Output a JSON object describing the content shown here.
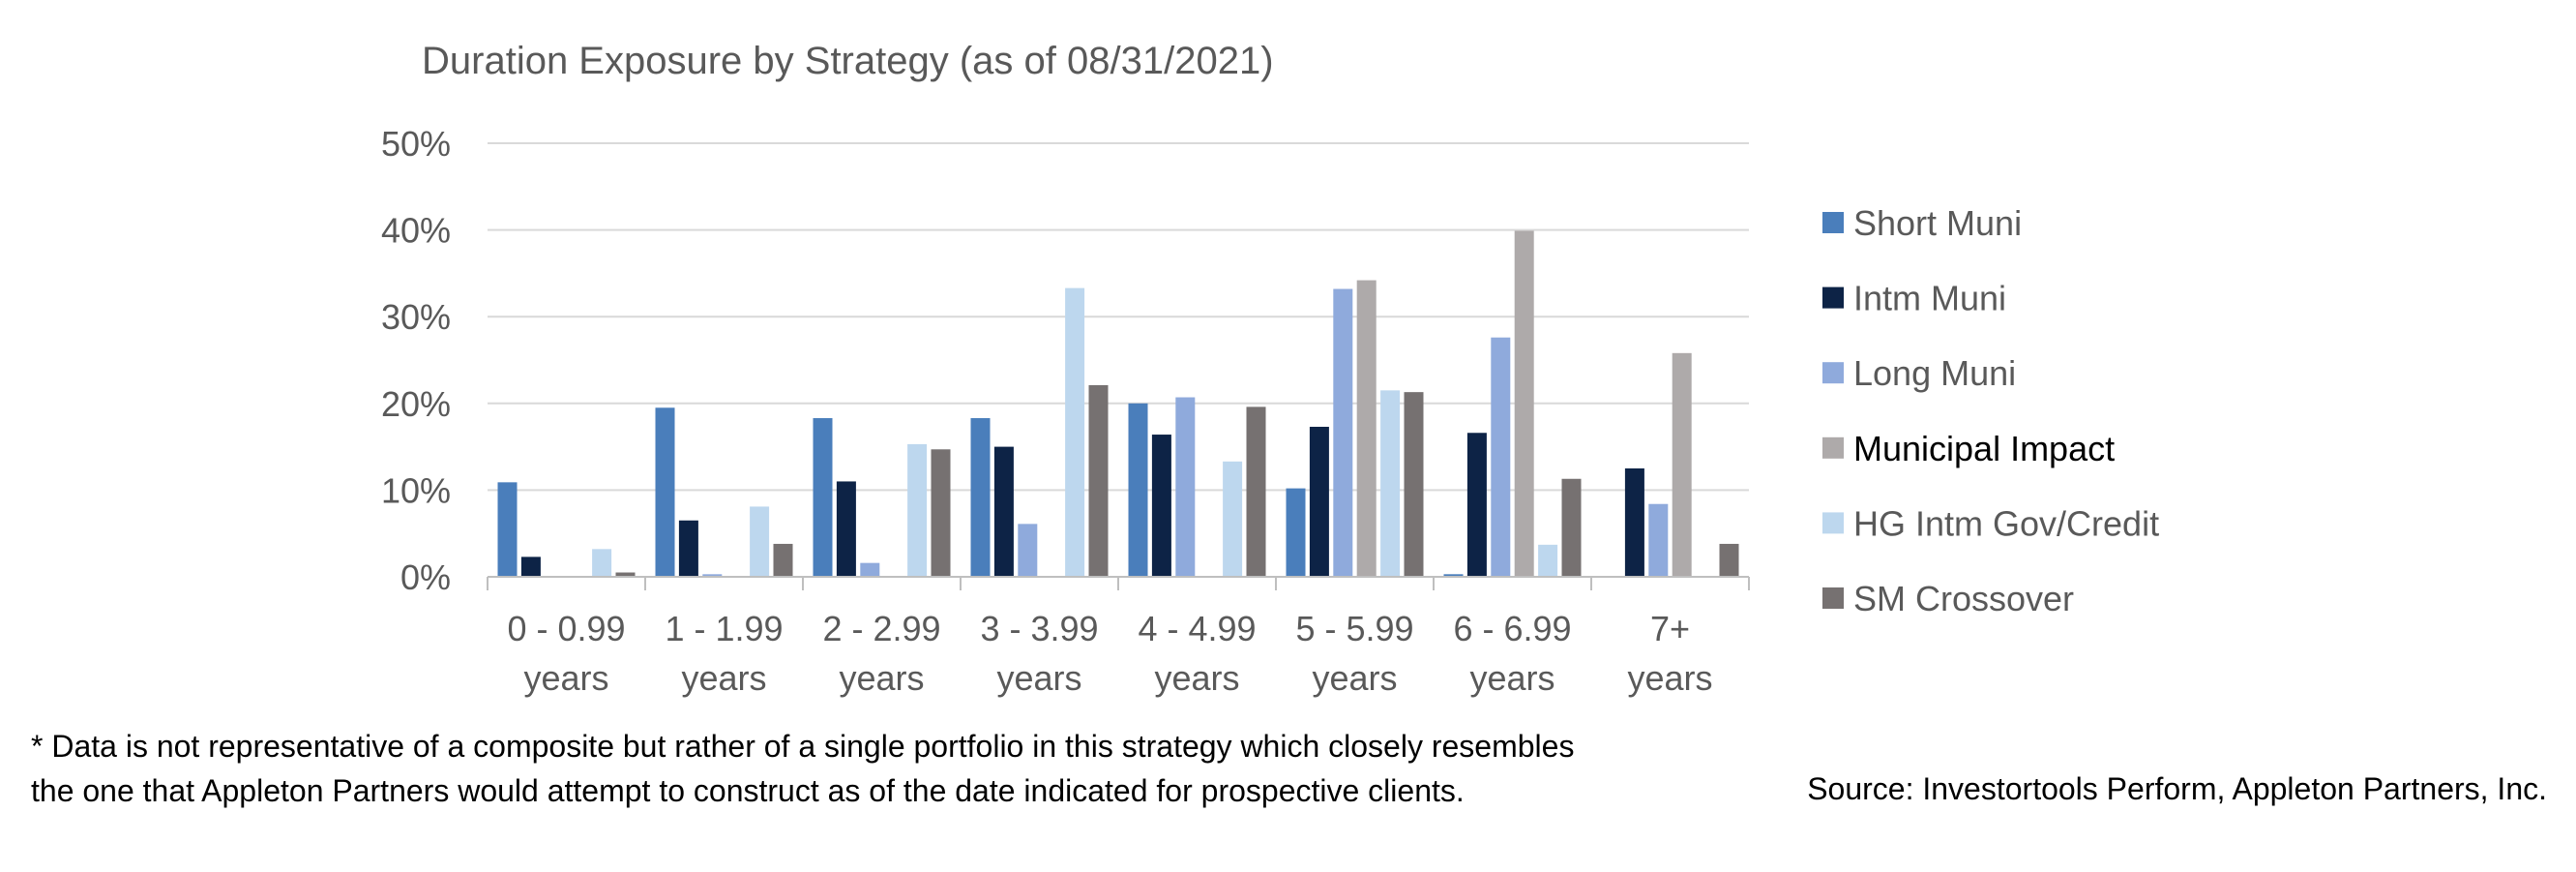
{
  "chart_data": {
    "type": "bar",
    "title": "Duration Exposure by Strategy (as of 08/31/2021)",
    "categories": [
      [
        "0 - 0.99",
        "years"
      ],
      [
        "1 - 1.99",
        "years"
      ],
      [
        "2 - 2.99",
        "years"
      ],
      [
        "3 - 3.99",
        "years"
      ],
      [
        "4 - 4.99",
        "years"
      ],
      [
        "5 - 5.99",
        "years"
      ],
      [
        "6 - 6.99",
        "years"
      ],
      [
        "7+",
        "years"
      ]
    ],
    "ylim": [
      0,
      50
    ],
    "yticks": [
      0,
      10,
      20,
      30,
      40,
      50
    ],
    "ytick_labels": [
      "0%",
      "10%",
      "20%",
      "30%",
      "40%",
      "50%"
    ],
    "grid": true,
    "legend_position": "right",
    "series": [
      {
        "name": "Short Muni",
        "color": "#4a7ebb",
        "values": [
          10.9,
          19.5,
          18.3,
          18.3,
          20.0,
          10.2,
          0.3,
          0.0
        ]
      },
      {
        "name": "Intm Muni",
        "color": "#0d2346",
        "values": [
          2.3,
          6.5,
          11.0,
          15.0,
          16.4,
          17.3,
          16.6,
          12.5
        ]
      },
      {
        "name": "Long Muni",
        "color": "#8faadc",
        "values": [
          0.0,
          0.3,
          1.6,
          6.1,
          20.7,
          33.2,
          27.6,
          8.4
        ]
      },
      {
        "name": "Municipal Impact",
        "color": "#aeaaaa",
        "values": [
          0.0,
          0.0,
          0.0,
          0.0,
          0.0,
          34.2,
          39.9,
          25.8
        ]
      },
      {
        "name": "HG Intm Gov/Credit",
        "color": "#bdd7ee",
        "values": [
          3.2,
          8.1,
          15.3,
          33.3,
          13.3,
          21.5,
          3.7,
          0.0
        ]
      },
      {
        "name": "SM Crossover",
        "color": "#767171",
        "values": [
          0.5,
          3.8,
          14.7,
          22.1,
          19.6,
          21.3,
          11.3,
          3.8
        ]
      }
    ]
  },
  "footnote": "* Data is not representative of a composite but rather of a single portfolio in this strategy which closely resembles the one that Appleton Partners would attempt to construct as of the date indicated for prospective clients.",
  "source": "Source: Investortools Perform, Appleton Partners, Inc."
}
